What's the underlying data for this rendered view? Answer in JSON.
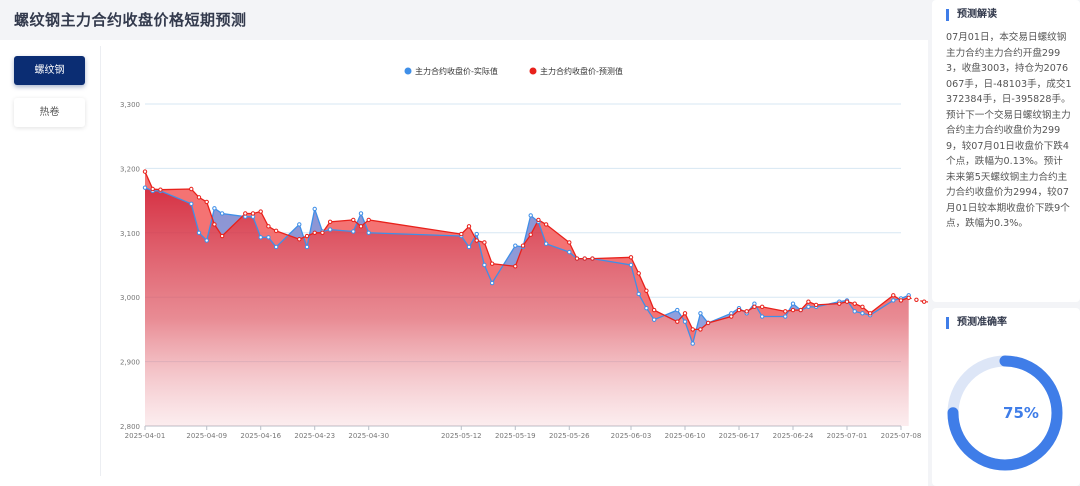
{
  "page": {
    "title": "螺纹钢主力合约收盘价格短期预测"
  },
  "tabs": [
    {
      "label": "螺纹钢",
      "active": true
    },
    {
      "label": "热卷",
      "active": false
    }
  ],
  "analysis": {
    "title": "预测解读",
    "text": "07月01日，本交易日螺纹钢主力合约主力合约开盘2993，收盘3003，持仓为2076067手，日-48103手，成交1372384手，日-395828手。预计下一个交易日螺纹钢主力合约主力合约收盘价为2999，较07月01日收盘价下跌4个点，跌幅为0.13%。预计未来第5天螺纹钢主力合约主力合约收盘价为2994，较07月01日较本期收盘价下跌9个点，跌幅为0.3%。"
  },
  "accuracy": {
    "title": "预测准确率",
    "value": 0.75,
    "label": "75%"
  },
  "colors": {
    "actual": "#3f8fe8",
    "predicted": "#e8211b",
    "accent": "#3f7de8",
    "tab_active": "#0b2d73"
  },
  "chart_data": {
    "type": "line",
    "title": "",
    "legend": [
      "主力合约收盘价-实际值",
      "主力合约收盘价-预测值"
    ],
    "legend_position": "top-center",
    "y_ticks": [
      2800,
      2900,
      3000,
      3100,
      3200,
      3300
    ],
    "y_tick_labels": [
      "2,800",
      "2,900",
      "3,000",
      "3,100",
      "3,200",
      "3,300"
    ],
    "ylim": [
      2800,
      3300
    ],
    "x_start": "2025-04-01",
    "x_end": "2025-07-08",
    "x_ticks": [
      "2025-04-01",
      "2025-04-09",
      "2025-04-16",
      "2025-04-23",
      "2025-04-30",
      "2025-05-12",
      "2025-05-19",
      "2025-05-26",
      "2025-06-03",
      "2025-06-10",
      "2025-06-17",
      "2025-06-24",
      "2025-07-01",
      "2025-07-08"
    ],
    "grid": "horizontal",
    "actual": [
      3170,
      3165,
      3165,
      3145,
      3100,
      3088,
      3138,
      3130,
      3125,
      3125,
      3093,
      3093,
      3078,
      3113,
      3078,
      3137,
      3102,
      3105,
      3102,
      3130,
      3100,
      3095,
      3078,
      3098,
      3050,
      3022,
      3080,
      3078,
      3127,
      3117,
      3083,
      3070,
      3060,
      3060,
      3060,
      3050,
      3005,
      2983,
      2965,
      2980,
      2962,
      2928,
      2975,
      2960,
      2975,
      2983,
      2975,
      2990,
      2970,
      2970,
      2990,
      2980,
      2985,
      2985,
      2993,
      2995,
      2978,
      2975,
      2972,
      2995,
      2998,
      3003
    ],
    "predicted": [
      3195,
      3168,
      3167,
      3168,
      3155,
      3148,
      3113,
      3095,
      3130,
      3130,
      3133,
      3110,
      3103,
      3090,
      3095,
      3100,
      3100,
      3117,
      3120,
      3110,
      3120,
      3098,
      3110,
      3088,
      3085,
      3052,
      3048,
      3080,
      3097,
      3120,
      3113,
      3085,
      3060,
      3060,
      3060,
      3062,
      3037,
      3010,
      2980,
      2962,
      2975,
      2950,
      2950,
      2960,
      2970,
      2980,
      2978,
      2985,
      2985,
      2978,
      2980,
      2980,
      2993,
      2988,
      2990,
      2993,
      2990,
      2985,
      2975,
      3003,
      2995,
      2999,
      2996,
      2993,
      2991,
      2995,
      2994
    ]
  }
}
